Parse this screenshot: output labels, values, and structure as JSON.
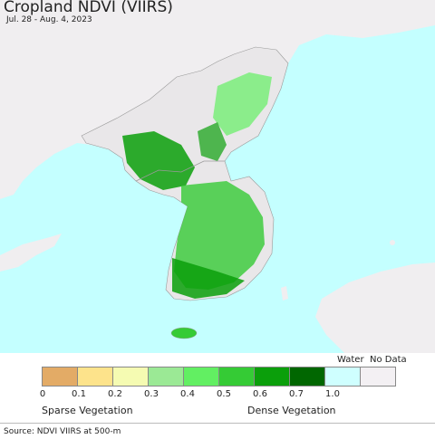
{
  "title": "Cropland NDVI (VIIRS)",
  "subtitle": "Jul. 28 - Aug. 4, 2023",
  "legend": {
    "colors": [
      "#e3ab66",
      "#fde38b",
      "#f5fbb2",
      "#9be995",
      "#62ef62",
      "#35cb35",
      "#0b9f0b",
      "#016701",
      "#cfffff",
      "#f3f0f3"
    ],
    "ticks": [
      "0",
      "0.1",
      "0.2",
      "0.3",
      "0.4",
      "0.5",
      "0.6",
      "0.7",
      "1.0"
    ],
    "water_label": "Water",
    "nodata_label": "No Data",
    "sparse_label": "Sparse Vegetation",
    "dense_label": "Dense Vegetation"
  },
  "map": {
    "ocean_color": "#c4ffff",
    "land_color": "#f0eef0",
    "border_color": "#9a9a9a"
  },
  "source": "Source: NDVI VIIRS at 500-m"
}
